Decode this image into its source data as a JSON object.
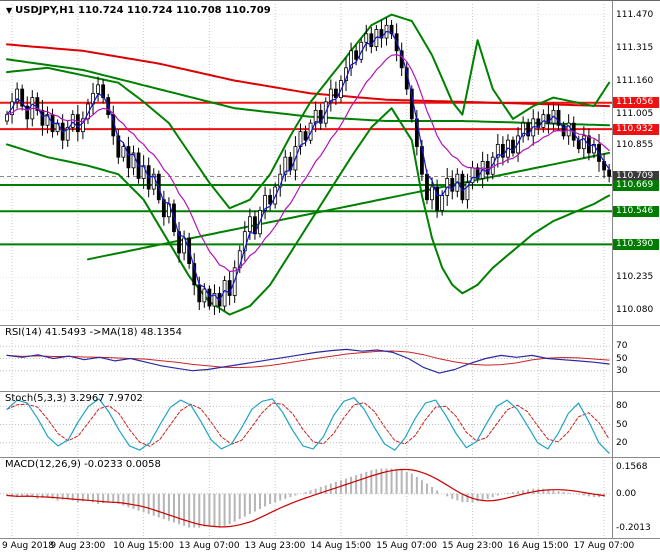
{
  "chart_data": [
    {
      "type": "candlestick",
      "title": "USDJPY,H1 110.724 110.724 110.708 110.709",
      "symbol": "USDJPY",
      "timeframe": "H1",
      "ohlc_current": [
        110.724,
        110.724,
        110.708,
        110.709
      ],
      "ylim": [
        110.03,
        111.52
      ],
      "yticks": [
        "111.470",
        "111.315",
        "111.160",
        "111.005",
        "110.855",
        "110.700",
        "110.545",
        "110.390",
        "110.235",
        "110.080"
      ],
      "x_labels": [
        "9 Aug 2018",
        "9 Aug 23:00",
        "10 Aug 15:00",
        "13 Aug 07:00",
        "13 Aug 23:00",
        "14 Aug 15:00",
        "15 Aug 07:00",
        "15 Aug 23:00",
        "16 Aug 15:00",
        "17 Aug 07:00"
      ],
      "x_label_indices": [
        1,
        14,
        27,
        40,
        53,
        66,
        79,
        92,
        105,
        118
      ],
      "open_first": 110.97,
      "wick": 0.035,
      "closes": [
        111.0,
        111.06,
        111.12,
        111.04,
        110.98,
        111.08,
        111.02,
        110.95,
        111.0,
        110.92,
        110.96,
        110.88,
        110.94,
        111.0,
        110.92,
        110.98,
        111.05,
        111.1,
        111.14,
        111.08,
        111.0,
        110.9,
        110.8,
        110.85,
        110.75,
        110.82,
        110.7,
        110.76,
        110.65,
        110.72,
        110.6,
        110.52,
        110.58,
        110.45,
        110.35,
        110.42,
        110.3,
        110.2,
        110.12,
        110.18,
        110.1,
        110.16,
        110.1,
        110.22,
        110.15,
        110.28,
        110.36,
        110.45,
        110.52,
        110.44,
        110.55,
        110.62,
        110.58,
        110.66,
        110.72,
        110.8,
        110.74,
        110.85,
        110.92,
        110.88,
        110.96,
        111.02,
        110.96,
        111.06,
        111.12,
        111.08,
        111.16,
        111.22,
        111.3,
        111.26,
        111.34,
        111.38,
        111.32,
        111.4,
        111.36,
        111.42,
        111.38,
        111.3,
        111.22,
        111.12,
        110.98,
        110.85,
        110.72,
        110.6,
        110.66,
        110.55,
        110.62,
        110.7,
        110.64,
        110.72,
        110.6,
        110.68,
        110.75,
        110.7,
        110.78,
        110.72,
        110.8,
        110.86,
        110.8,
        110.88,
        110.82,
        110.9,
        110.96,
        110.9,
        110.98,
        110.94,
        111.0,
        110.96,
        111.02,
        110.95,
        110.9,
        110.96,
        110.88,
        110.84,
        110.9,
        110.82,
        110.86,
        110.78,
        110.74,
        110.71
      ],
      "hlines": [
        {
          "price": 111.056,
          "label": "111.056",
          "color": "#ee1111",
          "style": "solid"
        },
        {
          "price": 110.932,
          "label": "110.932",
          "color": "#ee1111",
          "style": "solid"
        },
        {
          "price": 110.709,
          "label": "110.709",
          "color": "#888888",
          "style": "dash",
          "badge": "#3a3a3a"
        },
        {
          "price": 110.669,
          "label": "110.669",
          "color": "#007d00",
          "style": "solid"
        },
        {
          "price": 110.546,
          "label": "110.546",
          "color": "#007d00",
          "style": "solid"
        },
        {
          "price": 110.39,
          "label": "110.390",
          "color": "#007d00",
          "style": "solid"
        }
      ],
      "overlays": [
        {
          "name": "ma-red-slow",
          "color": "#dd0000",
          "width": 2,
          "anchors": [
            [
              0,
              111.33
            ],
            [
              15,
              111.3
            ],
            [
              30,
              111.24
            ],
            [
              45,
              111.16
            ],
            [
              60,
              111.1
            ],
            [
              75,
              111.07
            ],
            [
              90,
              111.06
            ],
            [
              105,
              111.05
            ],
            [
              119,
              111.04
            ]
          ]
        },
        {
          "name": "ma-green-slow",
          "color": "#008000",
          "width": 2,
          "anchors": [
            [
              0,
              111.26
            ],
            [
              15,
              111.21
            ],
            [
              30,
              111.12
            ],
            [
              45,
              111.03
            ],
            [
              60,
              110.99
            ],
            [
              75,
              110.97
            ],
            [
              90,
              110.97
            ],
            [
              105,
              110.96
            ],
            [
              119,
              110.95
            ]
          ]
        },
        {
          "name": "band-upper",
          "color": "#008000",
          "width": 2,
          "anchors": [
            [
              0,
              111.2
            ],
            [
              8,
              111.22
            ],
            [
              16,
              111.18
            ],
            [
              22,
              111.15
            ],
            [
              27,
              111.06
            ],
            [
              32,
              110.96
            ],
            [
              36,
              110.82
            ],
            [
              40,
              110.68
            ],
            [
              44,
              110.56
            ],
            [
              48,
              110.6
            ],
            [
              52,
              110.72
            ],
            [
              56,
              110.9
            ],
            [
              60,
              111.06
            ],
            [
              64,
              111.18
            ],
            [
              68,
              111.3
            ],
            [
              72,
              111.42
            ],
            [
              76,
              111.47
            ],
            [
              80,
              111.44
            ],
            [
              84,
              111.28
            ],
            [
              88,
              111.06
            ],
            [
              90,
              111.0
            ],
            [
              93,
              111.35
            ],
            [
              96,
              111.12
            ],
            [
              100,
              110.98
            ],
            [
              104,
              111.04
            ],
            [
              108,
              111.08
            ],
            [
              112,
              111.06
            ],
            [
              116,
              111.04
            ],
            [
              119,
              111.15
            ]
          ]
        },
        {
          "name": "band-lower",
          "color": "#008000",
          "width": 2,
          "anchors": [
            [
              0,
              110.86
            ],
            [
              8,
              110.8
            ],
            [
              16,
              110.76
            ],
            [
              22,
              110.72
            ],
            [
              27,
              110.6
            ],
            [
              32,
              110.4
            ],
            [
              36,
              110.24
            ],
            [
              40,
              110.12
            ],
            [
              44,
              110.06
            ],
            [
              48,
              110.1
            ],
            [
              52,
              110.2
            ],
            [
              56,
              110.35
            ],
            [
              60,
              110.5
            ],
            [
              64,
              110.65
            ],
            [
              68,
              110.8
            ],
            [
              72,
              110.94
            ],
            [
              76,
              111.03
            ],
            [
              80,
              110.88
            ],
            [
              82,
              110.62
            ],
            [
              84,
              110.42
            ],
            [
              86,
              110.28
            ],
            [
              88,
              110.2
            ],
            [
              90,
              110.16
            ],
            [
              93,
              110.2
            ],
            [
              96,
              110.28
            ],
            [
              100,
              110.36
            ],
            [
              104,
              110.44
            ],
            [
              108,
              110.5
            ],
            [
              112,
              110.54
            ],
            [
              116,
              110.58
            ],
            [
              119,
              110.62
            ]
          ]
        },
        {
          "name": "trendline-ascending",
          "color": "#008000",
          "width": 2,
          "anchors": [
            [
              16,
              110.32
            ],
            [
              119,
              110.82
            ]
          ]
        }
      ],
      "ema_fast_color": "#1414c8",
      "ema_slow_color": "#b414b4"
    },
    {
      "type": "line",
      "indicator": "RSI",
      "title": "RSI(14) 41.5493 ->MA(18) 48.1354",
      "current": 41.5493,
      "ma_current": 48.1354,
      "ylim": [
        0,
        100
      ],
      "levels": [
        70,
        50,
        30
      ],
      "color": "#2929a3",
      "ma_color": "#cc2222",
      "values": [
        55,
        52,
        56,
        50,
        54,
        48,
        52,
        46,
        50,
        44,
        38,
        34,
        30,
        32,
        36,
        40,
        44,
        48,
        52,
        56,
        60,
        63,
        65,
        62,
        64,
        60,
        50,
        35,
        26,
        32,
        42,
        50,
        55,
        52,
        55,
        50,
        48,
        46,
        44,
        41
      ]
    },
    {
      "type": "line",
      "indicator": "Stochastic",
      "title": "Stoch(5,3,3) 3.2967 7.9702",
      "current_k": 3.2967,
      "current_d": 7.9702,
      "ylim": [
        0,
        100
      ],
      "levels": [
        80,
        50,
        20
      ],
      "color": "#1fa3c4",
      "d_color": "#cc2222",
      "values": [
        75,
        90,
        85,
        60,
        30,
        15,
        25,
        55,
        80,
        92,
        70,
        40,
        15,
        8,
        20,
        50,
        78,
        90,
        82,
        55,
        25,
        10,
        18,
        45,
        75,
        88,
        92,
        70,
        40,
        15,
        10,
        30,
        65,
        88,
        94,
        75,
        45,
        18,
        8,
        28,
        60,
        85,
        90,
        65,
        35,
        12,
        22,
        52,
        80,
        90,
        75,
        48,
        20,
        10,
        35,
        68,
        85,
        55,
        20,
        3
      ]
    },
    {
      "type": "macd",
      "indicator": "MACD",
      "title": "MACD(12,26,9) -0.0233 0.0058",
      "current_macd": -0.0233,
      "current_signal": 0.0058,
      "ylim": [
        -0.25,
        0.2
      ],
      "yticks": [
        {
          "v": 0.1568,
          "label": "0.1568"
        },
        {
          "v": 0.0,
          "label": "0.00"
        },
        {
          "v": -0.2013,
          "label": "-0.2013"
        }
      ],
      "hist_color": "#b5b5b5",
      "signal_color": "#cc0000",
      "hist": [
        -0.01,
        -0.02,
        -0.01,
        -0.03,
        -0.02,
        -0.04,
        -0.03,
        -0.05,
        -0.04,
        -0.06,
        -0.05,
        -0.06,
        -0.08,
        -0.1,
        -0.12,
        -0.14,
        -0.16,
        -0.18,
        -0.2,
        -0.2,
        -0.19,
        -0.2,
        -0.18,
        -0.15,
        -0.12,
        -0.09,
        -0.06,
        -0.04,
        -0.02,
        0.0,
        0.02,
        0.04,
        0.06,
        0.08,
        0.1,
        0.12,
        0.14,
        0.15,
        0.15,
        0.14,
        0.12,
        0.08,
        0.04,
        0.0,
        -0.03,
        -0.05,
        -0.05,
        -0.04,
        -0.02,
        0.0,
        0.01,
        0.02,
        0.03,
        0.03,
        0.02,
        0.01,
        0.0,
        -0.01,
        -0.02,
        -0.02
      ]
    }
  ]
}
